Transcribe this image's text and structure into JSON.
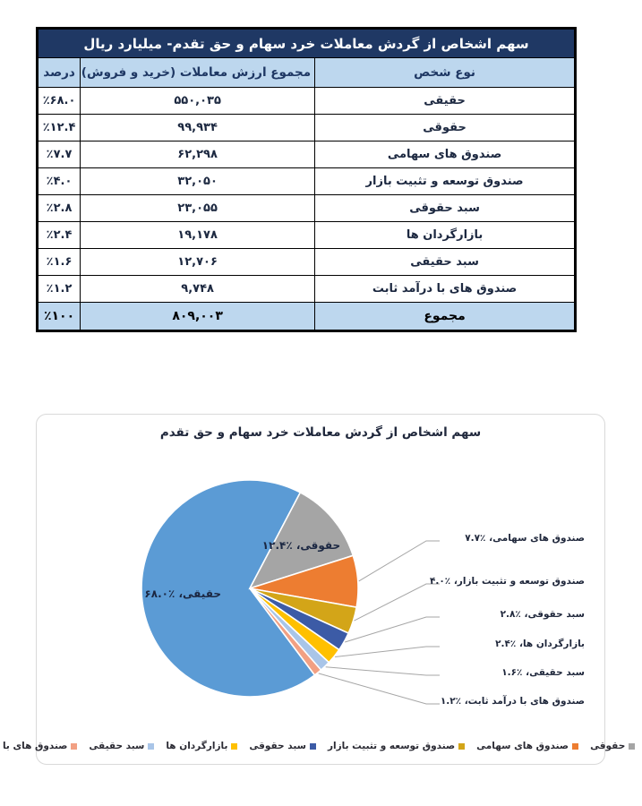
{
  "table": {
    "title": "سهم اشخاص از گردش معاملات خرد سهام و حق تقدم- میلیارد ریال",
    "columns": {
      "type": "نوع شخص",
      "value": "مجموع ارزش معاملات (خرید و فروش)",
      "percent": "درصد"
    },
    "rows": [
      {
        "type": "حقیقی",
        "value": "۵۵۰,۰۳۵",
        "percent": "٪۶۸.۰"
      },
      {
        "type": "حقوقی",
        "value": "۹۹,۹۳۴",
        "percent": "٪۱۲.۴"
      },
      {
        "type": "صندوق های سهامی",
        "value": "۶۲,۲۹۸",
        "percent": "٪۷.۷"
      },
      {
        "type": "صندوق توسعه و تثبیت بازار",
        "value": "۳۲,۰۵۰",
        "percent": "٪۴.۰"
      },
      {
        "type": "سبد حقوقی",
        "value": "۲۳,۰۵۵",
        "percent": "٪۲.۸"
      },
      {
        "type": "بازارگردان ها",
        "value": "۱۹,۱۷۸",
        "percent": "٪۲.۴"
      },
      {
        "type": "سبد حقیقی",
        "value": "۱۲,۷۰۶",
        "percent": "٪۱.۶"
      },
      {
        "type": "صندوق های با درآمد ثابت",
        "value": "۹,۷۴۸",
        "percent": "٪۱.۲"
      }
    ],
    "total": {
      "type": "مجموع",
      "value": "۸۰۹,۰۰۳",
      "percent": "٪۱۰۰"
    },
    "colors": {
      "title_bg": "#1F3864",
      "title_fg": "#FFFFFF",
      "header_bg": "#BDD7EE",
      "header_fg": "#1F3864",
      "total_bg": "#BDD7EE",
      "border": "#000000"
    }
  },
  "chart_data": {
    "type": "pie",
    "title": "سهم اشخاص از گردش معاملات خرد سهام و حق تقدم",
    "start_angle_deg": 143.2,
    "direction": "clockwise",
    "legend_position": "bottom",
    "rtl": true,
    "leader_line_color": "#A6A6A6",
    "slices": [
      {
        "label": "حقیقی",
        "value": 68.0,
        "display": "٪۶۸.۰",
        "color": "#5B9BD5",
        "label_mode": "inside"
      },
      {
        "label": "حقوقی",
        "value": 12.4,
        "display": "٪۱۲.۴",
        "color": "#A5A5A5",
        "label_mode": "inside"
      },
      {
        "label": "صندوق های سهامی",
        "value": 7.7,
        "display": "٪۷.۷",
        "color": "#ED7D31",
        "label_mode": "callout"
      },
      {
        "label": "صندوق توسعه و تثبیت بازار",
        "value": 4.0,
        "display": "٪۴.۰",
        "color": "#D3A518",
        "label_mode": "callout"
      },
      {
        "label": "سبد حقوقی",
        "value": 2.8,
        "display": "٪۲.۸",
        "color": "#3C5BA6",
        "label_mode": "callout"
      },
      {
        "label": "بازارگردان ها",
        "value": 2.4,
        "display": "٪۲.۴",
        "color": "#FFC000",
        "label_mode": "callout"
      },
      {
        "label": "سبد حقیقی",
        "value": 1.6,
        "display": "٪۱.۶",
        "color": "#A9C5E8",
        "label_mode": "callout"
      },
      {
        "label": "صندوق های با درآمد ثابت",
        "value": 1.2,
        "display": "٪۱.۲",
        "color": "#F2A083",
        "label_mode": "callout"
      }
    ]
  }
}
